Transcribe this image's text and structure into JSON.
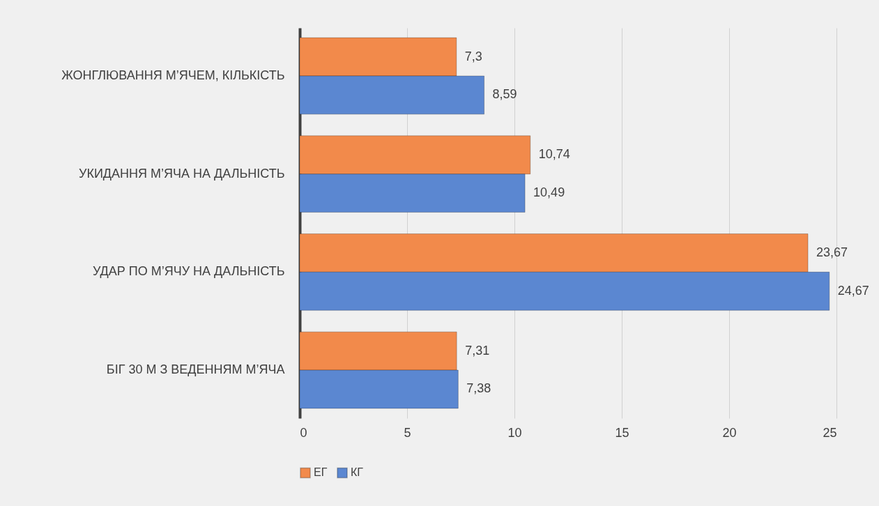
{
  "chart_data": {
    "type": "bar",
    "orientation": "horizontal",
    "categories": [
      "ЖОНГЛЮВАННЯ М’ЯЧЕМ, КІЛЬКІСТЬ",
      "УКИДАННЯ М’ЯЧА НА ДАЛЬНІСТЬ",
      "УДАР ПО М’ЯЧУ НА ДАЛЬНІСТЬ",
      "БІГ 30 М З ВЕДЕННЯМ М’ЯЧА"
    ],
    "series": [
      {
        "name": "ЕГ",
        "color": "#f28a4b",
        "values": [
          7.3,
          10.74,
          23.67,
          7.31
        ],
        "value_labels": [
          "7,3",
          "10,74",
          "23,67",
          "7,31"
        ]
      },
      {
        "name": "КГ",
        "color": "#5b87d1",
        "values": [
          8.59,
          10.49,
          24.67,
          7.38
        ],
        "value_labels": [
          "8,59",
          "10,49",
          "24,67",
          "7,38"
        ]
      }
    ],
    "xlim": [
      0,
      25
    ],
    "xticks": [
      0,
      5,
      10,
      15,
      20,
      25
    ],
    "grid": "x",
    "legend": "bottom"
  }
}
